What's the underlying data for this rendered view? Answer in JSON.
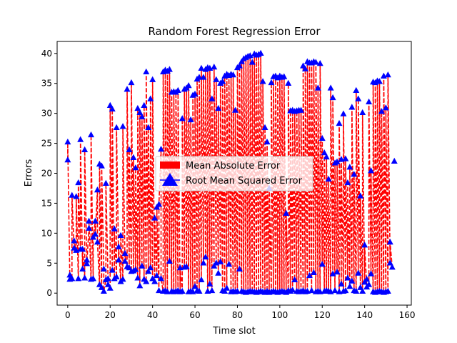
{
  "chart_data": {
    "type": "line",
    "title": "Random Forest Regression Error",
    "xlabel": "Time slot",
    "ylabel": "Errors",
    "xlim": [
      -5,
      162
    ],
    "ylim": [
      -2,
      42
    ],
    "xticks": [
      0,
      20,
      40,
      60,
      80,
      100,
      120,
      140,
      160
    ],
    "yticks": [
      0,
      5,
      10,
      15,
      20,
      25,
      30,
      35,
      40
    ],
    "grid": false,
    "legend_position": "center",
    "series": [
      {
        "name": "Mean Absolute Error",
        "color": "#ff0000",
        "legend_marker": "patch",
        "line_style": "dashed",
        "values": [
          22.2,
          2.3,
          2.4,
          7.5,
          7.1,
          2.4,
          7.3,
          4.0,
          2.5,
          5.5,
          10.8,
          2.3,
          2.4,
          12.0,
          17.2,
          1.4,
          0.9,
          4.0,
          2.2,
          2.4,
          0.8,
          3.8,
          2.4,
          2.7,
          5.5,
          1.9,
          2.3,
          5.3,
          4.4,
          4.2,
          3.6,
          3.7,
          3.9,
          2.5,
          1.2,
          4.5,
          2.3,
          1.9,
          3.6,
          4.2,
          2.4,
          1.9,
          2.9,
          0.4,
          24.0,
          0.3,
          0.4,
          0.2,
          5.3,
          0.3,
          0.2,
          0.3,
          0.4,
          0.2,
          0.3,
          4.3,
          4.4,
          0.2,
          0.3,
          0.2,
          1.1,
          0.4,
          0.3,
          2.2,
          5.0,
          6.0,
          0.3,
          1.5,
          0.4,
          4.5,
          5.0,
          3.3,
          5.2,
          0.4,
          0.3,
          0.8,
          4.8,
          0.2,
          0.3,
          0.2,
          0.3,
          4.0,
          0.3,
          0.2,
          0.1,
          0.2,
          0.3,
          0.2,
          0.2,
          0.1,
          0.2,
          0.3,
          0.2,
          0.1,
          0.3,
          0.1,
          0.2,
          0.3,
          0.2,
          0.1,
          0.2,
          0.3,
          0.2,
          0.1,
          0.4,
          0.3,
          0.5,
          2.2,
          0.3,
          0.2,
          0.3,
          0.4,
          0.2,
          0.3,
          2.9,
          0.4,
          3.4,
          0.2,
          0.3,
          0.2,
          4.8,
          0.3,
          0.4,
          0.3,
          0.2,
          3.2,
          0.4,
          3.5,
          0.2,
          1.5,
          0.3,
          0.4,
          2.5,
          1.1,
          2.0,
          0.4,
          0.3,
          3.3,
          0.9,
          0.3,
          1.8,
          1.0,
          1.4,
          3.2,
          0.2,
          0.1,
          0.2,
          0.3,
          0.2,
          0.1,
          0.2,
          0.3,
          5.0,
          4.3,
          22.0
        ]
      },
      {
        "name": "Root Mean Squared Error",
        "color": "#0000ff",
        "legend_marker": "triangle",
        "line_style": "dashed",
        "values": [
          25.2,
          3.0,
          16.3,
          8.7,
          16.1,
          18.4,
          25.6,
          7.3,
          23.9,
          4.9,
          12.0,
          26.4,
          9.3,
          9.8,
          8.5,
          21.5,
          21.2,
          0.3,
          18.3,
          1.4,
          31.3,
          30.7,
          10.7,
          27.6,
          7.7,
          9.6,
          27.8,
          6.6,
          34.0,
          23.9,
          35.1,
          22.6,
          20.9,
          30.8,
          30.1,
          29.4,
          31.3,
          36.9,
          27.6,
          32.4,
          35.6,
          12.5,
          14.3,
          14.8,
          2.4,
          36.9,
          37.2,
          37.0,
          37.3,
          33.5,
          33.6,
          33.5,
          33.8,
          4.2,
          29.1,
          34.0,
          34.2,
          34.6,
          28.9,
          33.0,
          33.2,
          35.7,
          36.0,
          37.5,
          36.0,
          37.3,
          37.6,
          37.5,
          32.4,
          37.7,
          35.6,
          30.8,
          35.0,
          35.3,
          36.2,
          36.5,
          36.3,
          36.5,
          36.4,
          30.5,
          37.6,
          37.9,
          38.6,
          39.1,
          39.3,
          39.5,
          39.6,
          38.5,
          39.9,
          39.7,
          39.8,
          40.0,
          35.3,
          27.6,
          25.2,
          17.5,
          35.1,
          36.1,
          36.2,
          35.9,
          36.2,
          36.0,
          36.1,
          13.3,
          35.0,
          30.4,
          30.5,
          30.3,
          30.4,
          30.5,
          30.5,
          37.9,
          37.4,
          38.6,
          38.4,
          38.4,
          38.6,
          38.5,
          34.2,
          38.3,
          25.8,
          23.4,
          22.7,
          19.0,
          34.2,
          32.6,
          21.7,
          21.9,
          28.3,
          22.3,
          29.9,
          22.4,
          18.4,
          21.0,
          31.0,
          19.8,
          33.8,
          32.4,
          16.2,
          30.1,
          8.0,
          2.3,
          31.9,
          20.4,
          35.2,
          35.1,
          35.4,
          35.3,
          30.3,
          36.2,
          30.9,
          36.4,
          8.5
        ]
      }
    ]
  }
}
